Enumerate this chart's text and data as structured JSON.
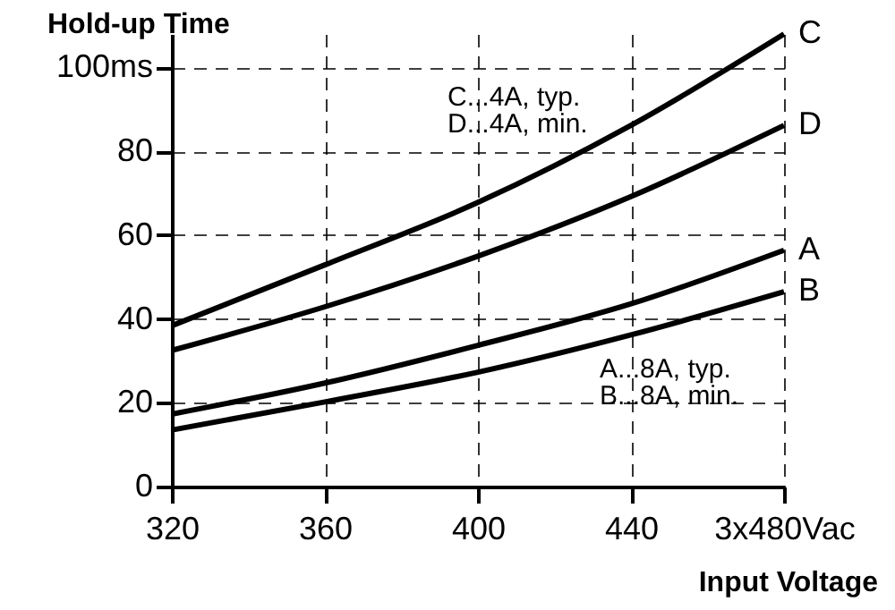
{
  "chart_data": {
    "type": "line",
    "ylabel": "Hold-up Time",
    "xlabel": "Input Voltage",
    "x": [
      320,
      360,
      400,
      440,
      480
    ],
    "series": [
      {
        "name": "C",
        "color": "#000000",
        "values": [
          38.4,
          52.9,
          67.8,
          86.2,
          108
        ]
      },
      {
        "name": "D",
        "color": "#000000",
        "values": [
          32.5,
          42.9,
          55,
          69.2,
          86.2
        ]
      },
      {
        "name": "A",
        "color": "#000000",
        "values": [
          17.3,
          24.7,
          33.7,
          43.6,
          56.4
        ]
      },
      {
        "name": "B",
        "color": "#000000",
        "values": [
          13.5,
          20.2,
          27.3,
          36.2,
          46.5
        ]
      }
    ],
    "xlim": [
      320,
      480
    ],
    "xticks": [
      320,
      360,
      400,
      440,
      {
        "value": 480,
        "label": "3x480Vac"
      }
    ],
    "ylim": [
      0,
      108
    ],
    "yticks": [
      0,
      20,
      40,
      60,
      80,
      {
        "value": 100,
        "label": "100ms"
      }
    ],
    "grid": true,
    "marker": "none",
    "line_style": "solid",
    "annotations": [
      "C...4A, typ.\nD...4A,  min.",
      "A...8A, typ.\nB...8A,  min."
    ]
  }
}
